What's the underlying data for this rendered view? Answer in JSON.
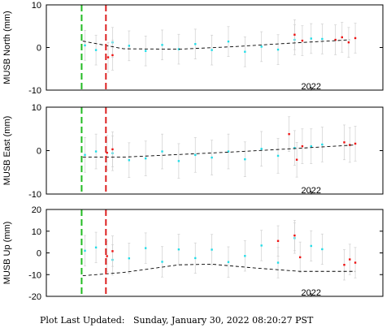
{
  "footer": {
    "label": "Plot Last Updated:",
    "datetime": "Sunday, January 30, 2022 08:20:27 PST"
  },
  "chart_data": [
    {
      "type": "scatter",
      "ylabel": "MUSB North (mm)",
      "ylim": [
        -10,
        10
      ],
      "yticks": [
        -10,
        0,
        10
      ],
      "xlim": [
        2019.6,
        2022.65
      ],
      "xticks": [
        {
          "value": 2022.0,
          "label": "2022"
        }
      ],
      "vlines": [
        {
          "x": 2019.92,
          "color": "#22bb22"
        },
        {
          "x": 2020.14,
          "color": "#dd2222"
        }
      ],
      "trend": {
        "x": [
          2019.93,
          2020.3,
          2020.8,
          2021.3,
          2021.8,
          2022.35
        ],
        "y": [
          1.5,
          -0.3,
          -0.4,
          0.2,
          1.0,
          1.8
        ]
      },
      "series_cyan": {
        "x": [
          2019.95,
          2020.05,
          2020.2,
          2020.35,
          2020.5,
          2020.65,
          2020.8,
          2020.95,
          2021.1,
          2021.25,
          2021.4,
          2021.55,
          2021.7,
          2021.85,
          2022.0,
          2022.1
        ],
        "y": [
          0.5,
          -0.6,
          1.2,
          0.4,
          -0.8,
          0.6,
          -0.4,
          0.8,
          -0.6,
          1.4,
          -1.0,
          0.2,
          -0.5,
          1.8,
          2.1,
          2.0
        ]
      },
      "series_red": {
        "x": [
          2020.16,
          2020.2,
          2021.85,
          2021.92,
          2022.22,
          2022.28,
          2022.34,
          2022.4
        ],
        "y": [
          -2.3,
          -1.8,
          3.0,
          1.6,
          1.8,
          2.4,
          1.2,
          2.2
        ]
      },
      "errbar": 3.5,
      "grid": false
    },
    {
      "type": "scatter",
      "ylabel": "MUSB East (mm)",
      "ylim": [
        -10,
        10
      ],
      "yticks": [
        -10,
        0,
        10
      ],
      "xlim": [
        2019.6,
        2022.65
      ],
      "xticks": [
        {
          "value": 2022.0,
          "label": "2022"
        }
      ],
      "vlines": [
        {
          "x": 2019.92,
          "color": "#22bb22"
        },
        {
          "x": 2020.14,
          "color": "#dd2222"
        }
      ],
      "trend": {
        "x": [
          2019.93,
          2020.3,
          2020.8,
          2021.3,
          2021.8,
          2022.4
        ],
        "y": [
          -1.5,
          -1.5,
          -0.9,
          -0.3,
          0.4,
          1.3
        ]
      },
      "series_cyan": {
        "x": [
          2019.95,
          2020.05,
          2020.2,
          2020.35,
          2020.5,
          2020.65,
          2020.8,
          2020.95,
          2021.1,
          2021.25,
          2021.4,
          2021.55,
          2021.7,
          2021.85,
          2022.0,
          2022.1
        ],
        "y": [
          -1.0,
          -0.2,
          -0.6,
          -2.2,
          -1.8,
          -0.2,
          -2.4,
          -1.0,
          -1.6,
          -0.2,
          -2.0,
          0.4,
          -1.2,
          0.6,
          1.0,
          1.4
        ]
      },
      "series_red": {
        "x": [
          2020.15,
          2020.2,
          2021.8,
          2021.87,
          2021.92,
          2022.3,
          2022.35,
          2022.4
        ],
        "y": [
          -0.5,
          0.3,
          3.8,
          -2.1,
          1.0,
          1.9,
          1.3,
          1.6
        ]
      },
      "errbar": 4.0,
      "grid": false
    },
    {
      "type": "scatter",
      "ylabel": "MUSB Up (mm)",
      "ylim": [
        -20,
        20
      ],
      "yticks": [
        -20,
        -10,
        0,
        10,
        20
      ],
      "xlim": [
        2019.6,
        2022.65
      ],
      "xticks": [
        {
          "value": 2022.0,
          "label": "2022"
        }
      ],
      "vlines": [
        {
          "x": 2019.92,
          "color": "#22bb22"
        },
        {
          "x": 2020.14,
          "color": "#dd2222"
        }
      ],
      "trend": {
        "x": [
          2019.93,
          2020.3,
          2020.8,
          2021.1,
          2021.5,
          2021.9,
          2022.4
        ],
        "y": [
          -10.5,
          -9.0,
          -5.5,
          -5.2,
          -7.0,
          -8.5,
          -8.5
        ]
      },
      "series_cyan": {
        "x": [
          2019.95,
          2020.05,
          2020.2,
          2020.35,
          2020.5,
          2020.65,
          2020.8,
          2020.95,
          2021.1,
          2021.25,
          2021.4,
          2021.55,
          2021.7,
          2021.85,
          2022.0,
          2022.1
        ],
        "y": [
          1.0,
          2.5,
          -3.2,
          -2.5,
          2.2,
          -4.1,
          1.6,
          -2.4,
          1.5,
          -4.2,
          -1.4,
          3.4,
          -4.5,
          6.8,
          3.2,
          1.7
        ]
      },
      "series_red": {
        "x": [
          2020.15,
          2020.2,
          2021.7,
          2021.85,
          2021.9,
          2022.3,
          2022.35,
          2022.4
        ],
        "y": [
          -1.5,
          0.8,
          5.5,
          8.0,
          -2.0,
          -5.5,
          -3.0,
          -4.5
        ]
      },
      "errbar": 7.0,
      "grid": false
    }
  ]
}
